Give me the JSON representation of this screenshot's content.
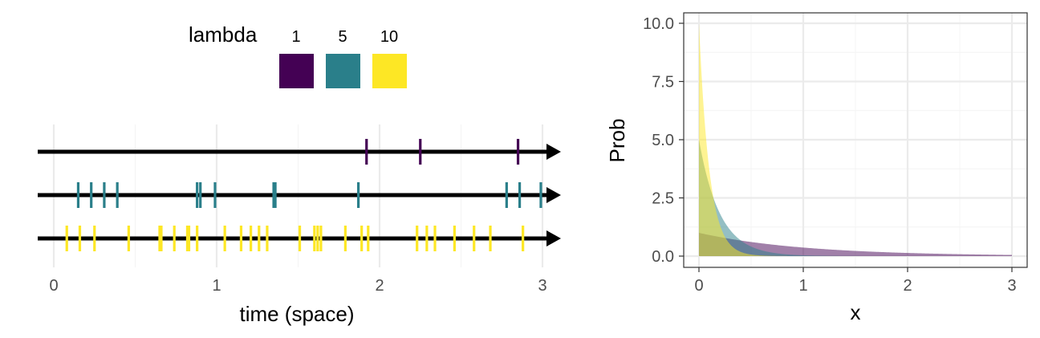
{
  "legend": {
    "title": "lambda",
    "entries": [
      {
        "label": "1",
        "color": "#440154"
      },
      {
        "label": "5",
        "color": "#2A7F8A"
      },
      {
        "label": "10",
        "color": "#FDE725"
      }
    ]
  },
  "chart_data": [
    {
      "type": "scatter",
      "title": "",
      "xlabel": "time (space)",
      "ylabel": "",
      "xlim": [
        0,
        3.1
      ],
      "x_ticks": [
        "0",
        "1",
        "2",
        "3"
      ],
      "grid": true,
      "rows": [
        {
          "lambda": "1",
          "color": "#440154",
          "events": [
            1.92,
            2.25,
            2.85
          ]
        },
        {
          "lambda": "5",
          "color": "#2A7F8A",
          "events": [
            0.15,
            0.23,
            0.31,
            0.39,
            0.88,
            0.9,
            0.99,
            1.35,
            1.36,
            1.87,
            2.78,
            2.86,
            2.99
          ]
        },
        {
          "lambda": "10",
          "color": "#FDE725",
          "events": [
            0.08,
            0.16,
            0.25,
            0.46,
            0.65,
            0.66,
            0.74,
            0.82,
            0.83,
            0.88,
            1.05,
            1.15,
            1.21,
            1.26,
            1.31,
            1.51,
            1.6,
            1.62,
            1.64,
            1.79,
            1.89,
            1.93,
            2.23,
            2.29,
            2.34,
            2.46,
            2.58,
            2.68,
            2.88
          ]
        }
      ]
    },
    {
      "type": "area",
      "title": "",
      "xlabel": "x",
      "ylabel": "Prob",
      "xlim": [
        0,
        3
      ],
      "ylim": [
        0,
        10
      ],
      "x_ticks": [
        "0",
        "1",
        "2",
        "3"
      ],
      "y_ticks": [
        "0.0",
        "2.5",
        "5.0",
        "7.5",
        "10.0"
      ],
      "grid": true,
      "border": true,
      "opacity": 0.5,
      "series": [
        {
          "name": "1",
          "rate": 1,
          "color": "#440154"
        },
        {
          "name": "5",
          "rate": 5,
          "color": "#2A7F8A"
        },
        {
          "name": "10",
          "rate": 10,
          "color": "#FDE725"
        }
      ]
    }
  ]
}
